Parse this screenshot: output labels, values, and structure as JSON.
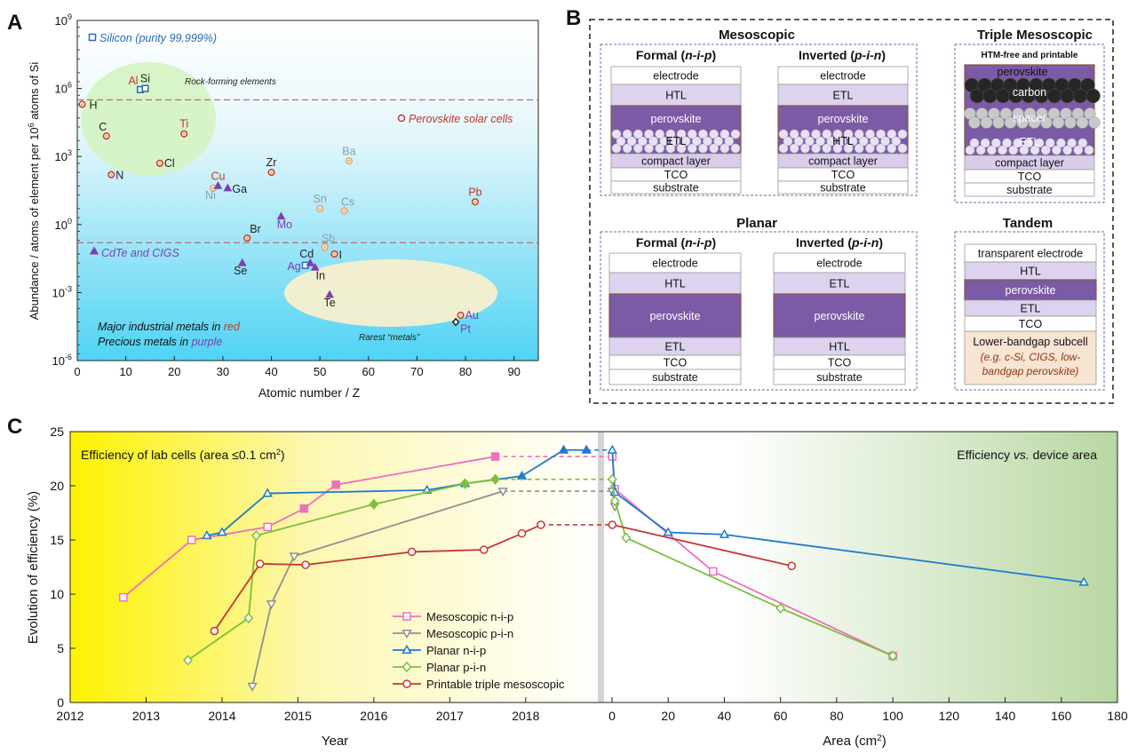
{
  "panel_letters": {
    "a": "A",
    "b": "B",
    "c": "C"
  },
  "chart_data": [
    {
      "type": "scatter",
      "panel": "A",
      "xlabel": "Atomic number / Z",
      "ylabel": "Abundance / atoms of element per 10^6 atoms of Si",
      "yscale": "log",
      "xlim": [
        0,
        95
      ],
      "ylim_exp": [
        -6,
        9
      ],
      "x_ticks": [
        0,
        10,
        20,
        30,
        40,
        50,
        60,
        70,
        80,
        90
      ],
      "y_tick_exps": [
        -6,
        -3,
        0,
        3,
        6,
        9
      ],
      "ref_lines": [
        {
          "name": "Perovskite solar cells",
          "y_exp": 5.5
        },
        {
          "name": "CdTe and CIGS",
          "y_exp": -0.8
        }
      ],
      "regions": [
        {
          "label": "Rock-forming elements",
          "color": "#d6f3c6"
        },
        {
          "label": "Rarest “metals”",
          "color": "#f7efce"
        }
      ],
      "legend": [
        {
          "label": "Silicon (purity 99.999%)",
          "marker": "square",
          "color": "#2a6ab0"
        },
        {
          "label": "Perovskite solar cells",
          "marker": "circle",
          "color": "#c0392b"
        },
        {
          "label": "CdTe and CIGS",
          "marker": "triangle",
          "color": "#7d3fb0"
        }
      ],
      "notes": [
        {
          "prefix": "Major industrial metals in ",
          "keyword": "red",
          "color": "#c0392b"
        },
        {
          "prefix": "Precious metals in ",
          "keyword": "purple",
          "color": "#7d3fb0"
        }
      ],
      "points": [
        {
          "label": "H",
          "z": 1,
          "y_exp": 5.3,
          "marker": "circle",
          "color": "#c0392b",
          "label_color": "#222222"
        },
        {
          "label": "C",
          "z": 6,
          "y_exp": 3.9,
          "marker": "circle",
          "color": "#c0392b",
          "label_color": "#222222"
        },
        {
          "label": "N",
          "z": 7,
          "y_exp": 2.2,
          "marker": "circle",
          "color": "#c0392b",
          "label_color": "#222222"
        },
        {
          "label": "Al",
          "z": 13,
          "y_exp": 5.95,
          "marker": "square",
          "color": "#2a6ab0",
          "label_color": "#c0392b"
        },
        {
          "label": "Si",
          "z": 14,
          "y_exp": 6.0,
          "marker": "square",
          "color": "#2a6ab0",
          "label_color": "#222222"
        },
        {
          "label": "Cl",
          "z": 17,
          "y_exp": 2.7,
          "marker": "circle",
          "color": "#c0392b",
          "label_color": "#222222"
        },
        {
          "label": "Ti",
          "z": 22,
          "y_exp": 4.0,
          "marker": "circle",
          "color": "#c0392b",
          "label_color": "#c0392b"
        },
        {
          "label": "Ni",
          "z": 28,
          "y_exp": 1.6,
          "marker": "circle",
          "color": "#e0a070",
          "label_color": "#8aa0a8"
        },
        {
          "label": "Cu",
          "z": 29,
          "y_exp": 1.7,
          "marker": "triangle",
          "color": "#7d3fb0",
          "label_color": "#c0392b"
        },
        {
          "label": "Ga",
          "z": 31,
          "y_exp": 1.6,
          "marker": "triangle",
          "color": "#7d3fb0",
          "label_color": "#222222"
        },
        {
          "label": "Se",
          "z": 34,
          "y_exp": -1.7,
          "marker": "triangle",
          "color": "#7d3fb0",
          "label_color": "#222222"
        },
        {
          "label": "Br",
          "z": 35,
          "y_exp": -0.6,
          "marker": "circle",
          "color": "#c0392b",
          "label_color": "#222222"
        },
        {
          "label": "Zr",
          "z": 40,
          "y_exp": 2.3,
          "marker": "circle",
          "color": "#c0392b",
          "label_color": "#222222"
        },
        {
          "label": "Mo",
          "z": 42,
          "y_exp": 0.35,
          "marker": "triangle",
          "color": "#7d3fb0",
          "label_color": "#7d3fb0"
        },
        {
          "label": "Ag",
          "z": 47,
          "y_exp": -1.8,
          "marker": "square",
          "color": "#2a6ab0",
          "label_color": "#7d3fb0"
        },
        {
          "label": "Cd",
          "z": 48,
          "y_exp": -1.7,
          "marker": "triangle",
          "color": "#7d3fb0",
          "label_color": "#222222"
        },
        {
          "label": "In",
          "z": 49,
          "y_exp": -1.9,
          "marker": "triangle",
          "color": "#7d3fb0",
          "label_color": "#222222"
        },
        {
          "label": "Sn",
          "z": 50,
          "y_exp": 0.7,
          "marker": "circle",
          "color": "#e0a070",
          "label_color": "#8aa0a8"
        },
        {
          "label": "Sb",
          "z": 51,
          "y_exp": -1.0,
          "marker": "circle",
          "color": "#e0a070",
          "label_color": "#8aa0a8"
        },
        {
          "label": "Te",
          "z": 52,
          "y_exp": -3.1,
          "marker": "triangle",
          "color": "#7d3fb0",
          "label_color": "#222222"
        },
        {
          "label": "I",
          "z": 53,
          "y_exp": -1.3,
          "marker": "circle",
          "color": "#c0392b",
          "label_color": "#222222"
        },
        {
          "label": "Cs",
          "z": 55,
          "y_exp": 0.6,
          "marker": "circle",
          "color": "#e0a070",
          "label_color": "#8aa0a8"
        },
        {
          "label": "Ba",
          "z": 56,
          "y_exp": 2.8,
          "marker": "circle",
          "color": "#e0a070",
          "label_color": "#8aa0a8"
        },
        {
          "label": "Pb",
          "z": 82,
          "y_exp": 1.0,
          "marker": "circle",
          "color": "#c0392b",
          "label_color": "#c0392b"
        },
        {
          "label": "Pt",
          "z": 78,
          "y_exp": -4.3,
          "marker": "diamond",
          "color": "#222222",
          "label_color": "#7d3fb0"
        },
        {
          "label": "Au",
          "z": 79,
          "y_exp": -4.0,
          "marker": "circle",
          "color": "#c0392b",
          "label_color": "#7d3fb0"
        }
      ]
    },
    {
      "type": "line",
      "panel": "C-left",
      "xlabel": "Year",
      "ylabel": "Evolution of efficiency (%)",
      "xlim": [
        2012,
        2018.95
      ],
      "ylim": [
        0,
        25
      ],
      "x_ticks": [
        2012,
        2013,
        2014,
        2015,
        2016,
        2017,
        2018
      ],
      "y_ticks": [
        0,
        5,
        10,
        15,
        20,
        25
      ],
      "annotation": "Efficiency of lab cells (area ≤0.1 cm²)",
      "series": [
        {
          "name": "Mesoscopic n-i-p",
          "color": "#ef6fbf",
          "marker": "square",
          "x": [
            2012.7,
            2013.6,
            2014.6,
            2015.08,
            2015.5,
            2017.6
          ],
          "y": [
            9.7,
            15.0,
            16.2,
            17.9,
            20.1,
            22.7
          ]
        },
        {
          "name": "Mesoscopic p-i-n",
          "color": "#909090",
          "marker": "triangle-down",
          "x": [
            2014.4,
            2014.65,
            2014.95,
            2017.7
          ],
          "y": [
            1.5,
            9.1,
            13.5,
            19.5
          ]
        },
        {
          "name": "Planar n-i-p",
          "color": "#1f7ad0",
          "marker": "triangle",
          "x": [
            2013.8,
            2014.0,
            2014.6,
            2016.7,
            2017.2,
            2017.95,
            2018.5,
            2018.8
          ],
          "y": [
            15.4,
            15.7,
            19.3,
            19.6,
            20.2,
            20.9,
            23.3,
            23.3
          ]
        },
        {
          "name": "Planar p-i-n",
          "color": "#7cbf3c",
          "marker": "diamond",
          "x": [
            2013.55,
            2014.35,
            2014.45,
            2016.0,
            2017.2,
            2017.6
          ],
          "y": [
            3.9,
            7.8,
            15.4,
            18.3,
            20.2,
            20.6
          ]
        },
        {
          "name": "Printable triple mesoscopic",
          "color": "#c43838",
          "marker": "circle",
          "x": [
            2013.9,
            2014.5,
            2015.1,
            2016.5,
            2017.45,
            2017.95,
            2018.2
          ],
          "y": [
            6.6,
            12.8,
            12.7,
            13.9,
            14.1,
            15.6,
            16.4
          ]
        }
      ],
      "legend": [
        "Mesoscopic n-i-p",
        "Mesoscopic p-i-n",
        "Planar n-i-p",
        "Planar p-i-n",
        "Printable triple mesoscopic"
      ]
    },
    {
      "type": "line",
      "panel": "C-right",
      "xlabel": "Area (cm²)",
      "xlim": [
        0,
        180
      ],
      "ylim": [
        0,
        25
      ],
      "x_ticks": [
        0,
        20,
        40,
        60,
        80,
        100,
        120,
        140,
        160,
        180
      ],
      "annotation_prefix": "Efficiency ",
      "annotation_italic": "vs.",
      "annotation_suffix": " device area",
      "series": [
        {
          "name": "Mesoscopic n-i-p",
          "color": "#ef6fbf",
          "marker": "square",
          "x": [
            0.1,
            1,
            36,
            100
          ],
          "y": [
            22.7,
            19.7,
            12.1,
            4.3
          ]
        },
        {
          "name": "Mesoscopic p-i-n",
          "color": "#909090",
          "marker": "triangle-down",
          "x": [
            0.1,
            1
          ],
          "y": [
            19.5,
            18.1
          ]
        },
        {
          "name": "Planar n-i-p",
          "color": "#1f7ad0",
          "marker": "triangle",
          "x": [
            0.1,
            1,
            20,
            40,
            168
          ],
          "y": [
            23.3,
            19.4,
            15.7,
            15.5,
            11.1
          ]
        },
        {
          "name": "Planar p-i-n",
          "color": "#7cbf3c",
          "marker": "diamond",
          "x": [
            0.1,
            1,
            5,
            60,
            100
          ],
          "y": [
            20.6,
            18.6,
            15.2,
            8.7,
            4.3
          ]
        },
        {
          "name": "Printable triple mesoscopic",
          "color": "#c43838",
          "marker": "circle",
          "x": [
            0.1,
            64
          ],
          "y": [
            16.4,
            12.6
          ]
        }
      ]
    }
  ],
  "panel_b": {
    "mesoscopic_title": "Mesoscopic",
    "triple_title": "Triple Mesoscopic",
    "planar_title": "Planar",
    "tandem_title": "Tandem",
    "formal_title": {
      "pre": "Formal (",
      "ital": "n-i-p",
      "post": ")"
    },
    "inverted_title": {
      "pre": "Inverted (",
      "ital": "p-i-n",
      "post": ")"
    },
    "triple_subtitle": "HTM-free and printable",
    "meso_formal": [
      "electrode",
      "HTL",
      "perovskite",
      "ETL",
      "compact layer",
      "TCO",
      "substrate"
    ],
    "meso_inverted": [
      "electrode",
      "ETL",
      "perovskite",
      "HTL",
      "compact layer",
      "TCO",
      "substrate"
    ],
    "triple": [
      "perovskite",
      "carbon",
      "spacer",
      "ETL",
      "compact layer",
      "TCO",
      "substrate"
    ],
    "planar_formal": [
      "electrode",
      "HTL",
      "perovskite",
      "ETL",
      "TCO",
      "substrate"
    ],
    "planar_inverted": [
      "electrode",
      "ETL",
      "perovskite",
      "HTL",
      "TCO",
      "substrate"
    ],
    "tandem": [
      "transparent electrode",
      "HTL",
      "perovskite",
      "ETL",
      "TCO",
      "Lower-bandgap subcell"
    ],
    "tandem_note": [
      "(e.g. c-Si, CIGS, low-",
      "bandgap perovskite)"
    ]
  }
}
